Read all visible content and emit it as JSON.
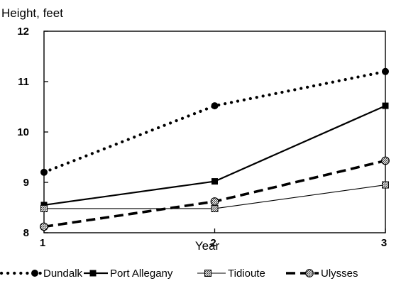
{
  "chart_data": {
    "type": "line",
    "title": "",
    "ylabel": "Height, feet",
    "xlabel": "Year",
    "x": [
      1,
      2,
      3
    ],
    "x_tick_labels": [
      "1",
      "2",
      "3"
    ],
    "xlim": [
      1,
      3
    ],
    "ylim": [
      8,
      12
    ],
    "y_ticks": [
      8,
      9,
      10,
      11,
      12
    ],
    "y_tick_labels": [
      "8",
      "9",
      "10",
      "11",
      "12"
    ],
    "grid": false,
    "legend_position": "bottom",
    "series": [
      {
        "name": "Dundalk",
        "values": [
          9.2,
          10.52,
          11.2
        ],
        "style": "dotted",
        "marker": "filled-circle",
        "color": "#000000"
      },
      {
        "name": "Port Allegany",
        "values": [
          8.55,
          9.02,
          10.52
        ],
        "style": "solid-thick",
        "marker": "filled-square",
        "color": "#000000"
      },
      {
        "name": "Tidioute",
        "values": [
          8.48,
          8.48,
          8.95
        ],
        "style": "solid-thin",
        "marker": "hatched-square",
        "color": "#000000"
      },
      {
        "name": "Ulysses",
        "values": [
          8.12,
          8.62,
          9.43
        ],
        "style": "dashed",
        "marker": "hatched-circle",
        "color": "#000000"
      }
    ]
  }
}
